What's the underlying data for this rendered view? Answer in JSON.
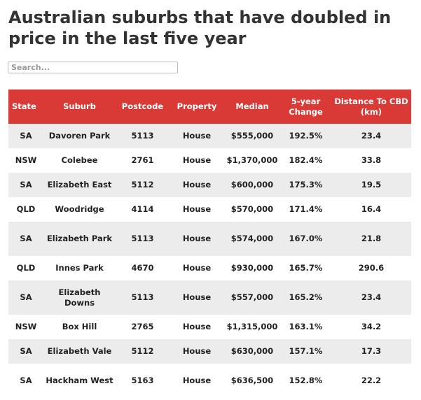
{
  "title": "Australian suburbs that have doubled in price in the last five year",
  "search": {
    "placeholder": "Search..."
  },
  "table": {
    "headers": {
      "state": "State",
      "suburb": "Suburb",
      "postcode": "Postcode",
      "property": "Property",
      "median": "Median",
      "change": "5-year Change",
      "distance": "Distance To CBD (km)"
    },
    "rows": [
      {
        "state": "SA",
        "suburb": "Davoren Park",
        "postcode": "5113",
        "property": "House",
        "median": "$555,000",
        "change": "192.5%",
        "distance": "23.4"
      },
      {
        "state": "NSW",
        "suburb": "Colebee",
        "postcode": "2761",
        "property": "House",
        "median": "$1,370,000",
        "change": "182.4%",
        "distance": "33.8"
      },
      {
        "state": "SA",
        "suburb": "Elizabeth East",
        "postcode": "5112",
        "property": "House",
        "median": "$600,000",
        "change": "175.3%",
        "distance": "19.5"
      },
      {
        "state": "QLD",
        "suburb": "Woodridge",
        "postcode": "4114",
        "property": "House",
        "median": "$570,000",
        "change": "171.4%",
        "distance": "16.4"
      },
      {
        "state": "SA",
        "suburb": "Elizabeth Park",
        "postcode": "5113",
        "property": "House",
        "median": "$574,000",
        "change": "167.0%",
        "distance": "21.8"
      },
      {
        "state": "QLD",
        "suburb": "Innes Park",
        "postcode": "4670",
        "property": "House",
        "median": "$930,000",
        "change": "165.7%",
        "distance": "290.6"
      },
      {
        "state": "SA",
        "suburb": "Elizabeth Downs",
        "postcode": "5113",
        "property": "House",
        "median": "$557,000",
        "change": "165.2%",
        "distance": "23.4"
      },
      {
        "state": "NSW",
        "suburb": "Box Hill",
        "postcode": "2765",
        "property": "House",
        "median": "$1,315,000",
        "change": "163.1%",
        "distance": "34.2"
      },
      {
        "state": "SA",
        "suburb": "Elizabeth Vale",
        "postcode": "5112",
        "property": "House",
        "median": "$630,000",
        "change": "157.1%",
        "distance": "17.3"
      },
      {
        "state": "SA",
        "suburb": "Hackham West",
        "postcode": "5163",
        "property": "House",
        "median": "$636,500",
        "change": "152.8%",
        "distance": "22.2"
      }
    ]
  },
  "colors": {
    "header_bg": "#d93a35",
    "header_text": "#ffffff",
    "row_alt_bg": "#ececec"
  }
}
